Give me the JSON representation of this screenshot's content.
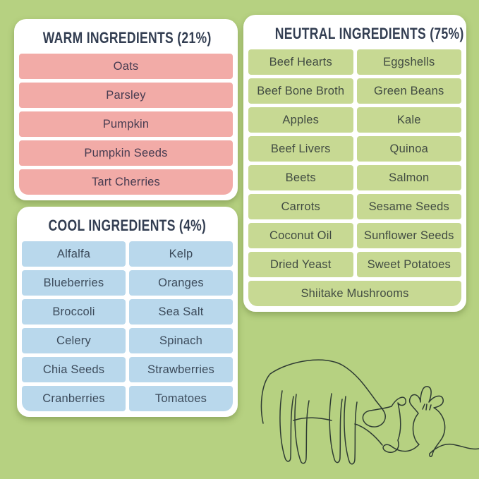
{
  "background_color": "#b6d181",
  "card_color": "#ffffff",
  "title_color": "#333e52",
  "panels": {
    "warm": {
      "title": "WARM INGREDIENTS (21%)",
      "percent": "21%",
      "color": "#f2aba7",
      "text_color": "#473c51",
      "columns": 1,
      "items": [
        "Oats",
        "Parsley",
        "Pumpkin",
        "Pumpkin Seeds",
        "Tart Cherries"
      ]
    },
    "cool": {
      "title": "COOL INGREDIENTS (4%)",
      "percent": "4%",
      "color": "#b9d8ec",
      "text_color": "#3c4b5b",
      "columns": 2,
      "items": [
        "Alfalfa",
        "Kelp",
        "Blueberries",
        "Oranges",
        "Broccoli",
        "Sea Salt",
        "Celery",
        "Spinach",
        "Chia Seeds",
        "Strawberries",
        "Cranberries",
        "Tomatoes"
      ]
    },
    "neutral": {
      "title": "NEUTRAL INGREDIENTS (75%)",
      "percent": "75%",
      "color": "#c7d993",
      "text_color": "#414b42",
      "columns": 2,
      "items": [
        "Beef Hearts",
        "Eggshells",
        "Beef Bone Broth",
        "Green Beans",
        "Apples",
        "Kale",
        "Beef Livers",
        "Quinoa",
        "Beets",
        "Salmon",
        "Carrots",
        "Sesame Seeds",
        "Coconut Oil",
        "Sunflower Seeds",
        "Dried Yeast",
        "Sweet Potatoes",
        "Shiitake Mushrooms"
      ]
    }
  },
  "illustration": {
    "label": "Continuous one-line drawing of a cow grazing next to a beet",
    "stroke_color": "#2e3b33"
  }
}
